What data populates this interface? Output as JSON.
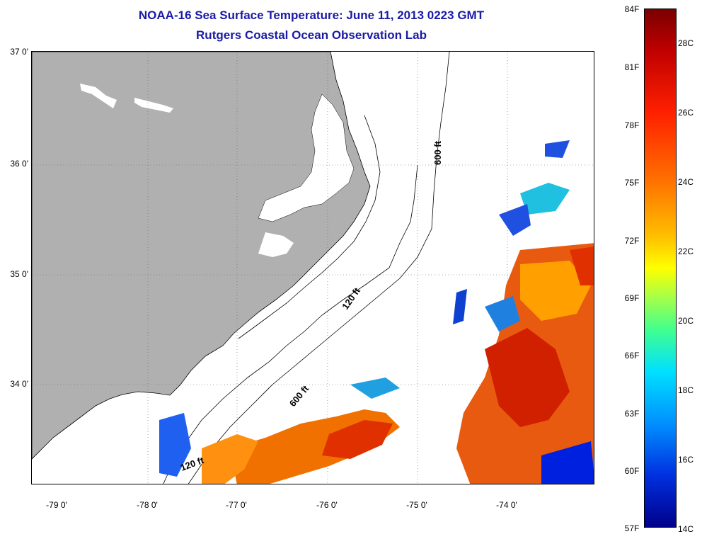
{
  "title_line1": "NOAA-16 Sea Surface Temperature:  June 11, 2013 0223 GMT",
  "title_line2": "Rutgers Coastal Ocean Observation Lab",
  "lat_labels": [
    "37 0'",
    "36 0'",
    "35 0'",
    "34 0'"
  ],
  "lon_labels": [
    "-79 0'",
    "-78 0'",
    "-77 0'",
    "-76 0'",
    "-75 0'",
    "-74 0'"
  ],
  "isobaths": [
    "600 ft",
    "120 ft",
    "600 ft",
    "120 ft"
  ],
  "colorbar": {
    "fahrenheit": [
      "84F",
      "81F",
      "78F",
      "75F",
      "72F",
      "69F",
      "66F",
      "63F",
      "60F",
      "57F"
    ],
    "celsius": [
      "28C",
      "26C",
      "24C",
      "22C",
      "20C",
      "18C",
      "16C",
      "14C"
    ]
  },
  "colors": {
    "land": "#b0b0b0",
    "title": "#1a1aa6"
  }
}
